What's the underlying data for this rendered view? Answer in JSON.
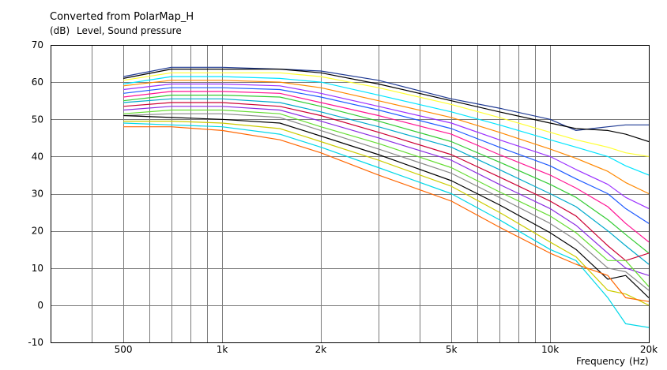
{
  "chart_data": {
    "type": "line",
    "title": "Converted from PolarMap_H",
    "ylabel_unit": "(dB)",
    "ylabel": "Level, Sound pressure",
    "xlabel": "Frequency",
    "xlabel_unit": "(Hz)",
    "xscale": "log",
    "xlim": [
      300,
      20000
    ],
    "ylim": [
      -10,
      70
    ],
    "grid": true,
    "legend": "none",
    "y_ticks": [
      "70",
      "60",
      "50",
      "40",
      "30",
      "20",
      "10",
      "0",
      "-10"
    ],
    "x_ticks": [
      {
        "value": 500,
        "label": "500"
      },
      {
        "value": 1000,
        "label": "1k"
      },
      {
        "value": 2000,
        "label": "2k"
      },
      {
        "value": 5000,
        "label": "5k"
      },
      {
        "value": 10000,
        "label": "10k"
      },
      {
        "value": 20000,
        "label": "20k"
      }
    ],
    "x": [
      500,
      700,
      1000,
      1500,
      2000,
      3000,
      5000,
      7000,
      10000,
      12000,
      15000,
      17000,
      20000
    ],
    "series": [
      {
        "color": "#1f3a93",
        "values": [
          61.5,
          64,
          64,
          63.5,
          63,
          60.5,
          55.5,
          53,
          50,
          47,
          48,
          48.5,
          48.5
        ]
      },
      {
        "color": "#000000",
        "values": [
          61,
          63.5,
          63.5,
          63.5,
          62.5,
          59.5,
          55,
          52,
          49,
          47.5,
          47,
          46,
          44
        ]
      },
      {
        "color": "#ffff33",
        "values": [
          60.5,
          62.5,
          62.5,
          62.5,
          61.5,
          58.5,
          54,
          50.5,
          46.5,
          44.5,
          42.5,
          41,
          40
        ]
      },
      {
        "color": "#00e5ff",
        "values": [
          59.5,
          61.5,
          61.5,
          61,
          60,
          56.5,
          52,
          48.5,
          44.5,
          42.5,
          40,
          37.5,
          35
        ]
      },
      {
        "color": "#ff8800",
        "values": [
          59,
          60.5,
          60.5,
          60,
          58.5,
          55,
          50.5,
          46.5,
          42,
          39.5,
          36,
          33,
          30
        ]
      },
      {
        "color": "#9b30ff",
        "values": [
          58,
          59.5,
          59.5,
          59,
          57,
          53.5,
          49,
          44.5,
          40,
          36.5,
          32.5,
          29,
          26
        ]
      },
      {
        "color": "#1e5aff",
        "values": [
          57,
          58.5,
          58.5,
          58,
          56,
          52.5,
          47.5,
          42.5,
          37.5,
          34,
          30,
          26,
          22
        ]
      },
      {
        "color": "#ff1493",
        "values": [
          56,
          57.5,
          57.5,
          57,
          54.5,
          51,
          46,
          40.5,
          35,
          31.5,
          26.5,
          22,
          17
        ]
      },
      {
        "color": "#33cc33",
        "values": [
          55,
          56.5,
          56.5,
          56,
          53.5,
          49.5,
          44,
          38.5,
          32.5,
          29,
          23,
          19,
          14
        ]
      },
      {
        "color": "#00aacc",
        "values": [
          54.5,
          55.5,
          55.5,
          54.5,
          52,
          48,
          42.5,
          36.5,
          30,
          26.5,
          20,
          16,
          11
        ]
      },
      {
        "color": "#cc0033",
        "values": [
          53.5,
          54.5,
          54.5,
          53.5,
          51,
          46.5,
          40.5,
          34.5,
          28,
          24,
          16,
          12,
          14
        ]
      },
      {
        "color": "#8a2be2",
        "values": [
          52.5,
          53.5,
          53.5,
          52.5,
          49.5,
          45,
          39,
          32.5,
          26,
          21.5,
          14,
          10,
          8
        ]
      },
      {
        "color": "#66dd33",
        "values": [
          51.5,
          52.5,
          52.5,
          51.5,
          48,
          43.5,
          37,
          30.5,
          24,
          19.5,
          12,
          12,
          5
        ]
      },
      {
        "color": "#888888",
        "values": [
          51,
          51.5,
          51.5,
          50.5,
          47,
          42,
          35.5,
          29,
          22,
          17.5,
          10,
          9,
          4
        ]
      },
      {
        "color": "#000000",
        "values": [
          51,
          50.5,
          50,
          49,
          45.5,
          40.5,
          33.5,
          27,
          19.5,
          15,
          7,
          8,
          2
        ]
      },
      {
        "color": "#cccc00",
        "values": [
          49.5,
          49.5,
          49,
          47.5,
          44,
          39,
          32,
          25,
          17,
          13,
          4,
          3,
          0
        ]
      },
      {
        "color": "#00d8e8",
        "values": [
          49,
          48.5,
          48,
          46,
          42.5,
          37,
          30,
          23,
          15,
          12,
          2,
          -5,
          -6
        ]
      },
      {
        "color": "#ff6600",
        "values": [
          48,
          48,
          47,
          44.5,
          41,
          35,
          28,
          21,
          14,
          11,
          8,
          2,
          1
        ]
      }
    ]
  }
}
